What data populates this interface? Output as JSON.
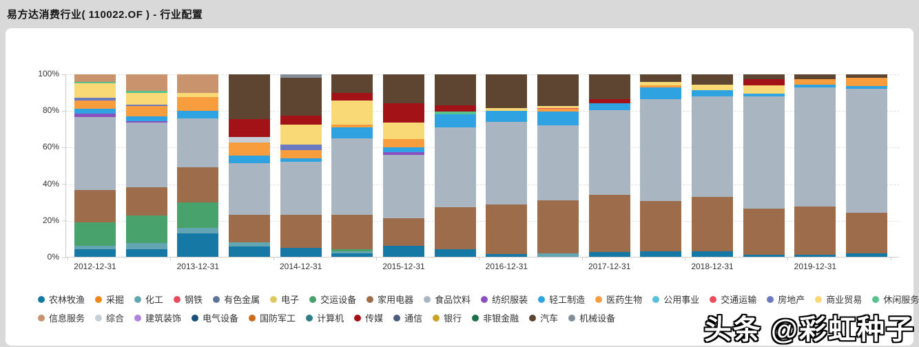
{
  "page": {
    "title": "易方达消费行业( 110022.OF ) - 行业配置"
  },
  "watermark": "头条 @彩虹种子",
  "legend": {
    "row1": [
      {
        "label": "农林牧渔",
        "color": "#1578a5"
      },
      {
        "label": "采掘",
        "color": "#f0861f"
      },
      {
        "label": "化工",
        "color": "#64a5b4"
      },
      {
        "label": "钢铁",
        "color": "#e74b5e"
      },
      {
        "label": "有色金属",
        "color": "#5d7398"
      },
      {
        "label": "电子",
        "color": "#ddc960"
      },
      {
        "label": "交运设备",
        "color": "#47a26c"
      },
      {
        "label": "家用电器",
        "color": "#9d6c4b"
      },
      {
        "label": "食品饮料",
        "color": "#a9b5c1"
      },
      {
        "label": "纺织服装",
        "color": "#8b50bf"
      },
      {
        "label": "轻工制造",
        "color": "#2fa3e1"
      },
      {
        "label": "医药生物",
        "color": "#f89d3e"
      },
      {
        "label": "公用事业",
        "color": "#56c2d9"
      },
      {
        "label": "交通运输",
        "color": "#ea4e5d"
      },
      {
        "label": "房地产",
        "color": "#6b7ac0"
      },
      {
        "label": "商业贸易",
        "color": "#f8d976"
      },
      {
        "label": "休闲服务",
        "color": "#58c28d"
      }
    ],
    "row2": [
      {
        "label": "信息服务",
        "color": "#c9936e"
      },
      {
        "label": "综合",
        "color": "#c6ced8"
      },
      {
        "label": "建筑装饰",
        "color": "#b184dd"
      },
      {
        "label": "电气设备",
        "color": "#17507a"
      },
      {
        "label": "国防军工",
        "color": "#cc6b1c"
      },
      {
        "label": "计算机",
        "color": "#2e7d85"
      },
      {
        "label": "传媒",
        "color": "#a31216"
      },
      {
        "label": "通信",
        "color": "#4a5d7e"
      },
      {
        "label": "银行",
        "color": "#c9a227"
      },
      {
        "label": "非银金融",
        "color": "#1d7045"
      },
      {
        "label": "汽车",
        "color": "#5d4531"
      },
      {
        "label": "机械设备",
        "color": "#848e98"
      }
    ]
  },
  "chart_data": {
    "type": "bar",
    "stacked": true,
    "title": "行业配置",
    "xlabel": "",
    "ylabel": "",
    "unit": "%",
    "ylim": [
      0,
      100
    ],
    "yticks": [
      "0%",
      "20%",
      "40%",
      "60%",
      "80%",
      "100%"
    ],
    "grid": "dashed-horizontal",
    "legend_position": "bottom",
    "x_axis_labels": [
      "2012-12-31",
      "2013-12-31",
      "2014-12-31",
      "2015-12-31",
      "2016-12-31",
      "2017-12-31",
      "2018-12-31",
      "2019-12-31"
    ],
    "bars": [
      {
        "x_label": "2012-12-31",
        "segments": [
          [
            "农林牧渔",
            4
          ],
          [
            "化工",
            2
          ],
          [
            "交运设备",
            13
          ],
          [
            "家用电器",
            17.5
          ],
          [
            "食品饮料",
            40
          ],
          [
            "纺织服装",
            2
          ],
          [
            "轻工制造",
            2.5
          ],
          [
            "医药生物",
            4.5
          ],
          [
            "房地产",
            1.5
          ],
          [
            "商业贸易",
            8
          ],
          [
            "休闲服务",
            1
          ],
          [
            "信息服务",
            4
          ]
        ]
      },
      {
        "x_label": "",
        "segments": [
          [
            "农林牧渔",
            4
          ],
          [
            "化工",
            3.5
          ],
          [
            "交运设备",
            15
          ],
          [
            "家用电器",
            15.5
          ],
          [
            "食品饮料",
            35.5
          ],
          [
            "纺织服装",
            1
          ],
          [
            "轻工制造",
            2.5
          ],
          [
            "医药生物",
            5.5
          ],
          [
            "房地产",
            1
          ],
          [
            "商业贸易",
            6.5
          ],
          [
            "休闲服务",
            1
          ],
          [
            "信息服务",
            9
          ]
        ]
      },
      {
        "x_label": "2013-12-31",
        "segments": [
          [
            "农林牧渔",
            13
          ],
          [
            "化工",
            3
          ],
          [
            "交运设备",
            14
          ],
          [
            "家用电器",
            19
          ],
          [
            "食品饮料",
            27
          ],
          [
            "轻工制造",
            4
          ],
          [
            "医药生物",
            7.5
          ],
          [
            "商业贸易",
            2.5
          ],
          [
            "信息服务",
            10
          ]
        ]
      },
      {
        "x_label": "",
        "segments": [
          [
            "农林牧渔",
            5.5
          ],
          [
            "化工",
            2.5
          ],
          [
            "家用电器",
            15
          ],
          [
            "食品饮料",
            28.5
          ],
          [
            "轻工制造",
            4
          ],
          [
            "医药生物",
            7
          ],
          [
            "综合",
            3
          ],
          [
            "传媒",
            10
          ],
          [
            "汽车",
            24.5
          ]
        ]
      },
      {
        "x_label": "2014-12-31",
        "segments": [
          [
            "农林牧渔",
            5
          ],
          [
            "家用电器",
            18
          ],
          [
            "食品饮料",
            29
          ],
          [
            "轻工制造",
            2
          ],
          [
            "医药生物",
            4.5
          ],
          [
            "房地产",
            3
          ],
          [
            "商业贸易",
            11
          ],
          [
            "传媒",
            5
          ],
          [
            "汽车",
            20.5
          ],
          [
            "机械设备",
            2
          ]
        ]
      },
      {
        "x_label": "",
        "segments": [
          [
            "农林牧渔",
            2
          ],
          [
            "化工",
            1
          ],
          [
            "交运设备",
            1
          ],
          [
            "家用电器",
            19
          ],
          [
            "食品饮料",
            42
          ],
          [
            "轻工制造",
            6
          ],
          [
            "医药生物",
            1.5
          ],
          [
            "商业贸易",
            13
          ],
          [
            "传媒",
            4.5
          ],
          [
            "汽车",
            10
          ]
        ]
      },
      {
        "x_label": "2015-12-31",
        "segments": [
          [
            "农林牧渔",
            6
          ],
          [
            "家用电器",
            15
          ],
          [
            "食品饮料",
            35
          ],
          [
            "纺织服装",
            1.5
          ],
          [
            "轻工制造",
            2.5
          ],
          [
            "医药生物",
            4.5
          ],
          [
            "商业贸易",
            9
          ],
          [
            "传媒",
            10.5
          ],
          [
            "汽车",
            16
          ]
        ]
      },
      {
        "x_label": "",
        "segments": [
          [
            "农林牧渔",
            4
          ],
          [
            "家用电器",
            23
          ],
          [
            "食品饮料",
            44
          ],
          [
            "轻工制造",
            7
          ],
          [
            "休闲服务",
            1.5
          ],
          [
            "传媒",
            3.5
          ],
          [
            "汽车",
            17
          ]
        ]
      },
      {
        "x_label": "2016-12-31",
        "segments": [
          [
            "农林牧渔",
            1.5
          ],
          [
            "家用电器",
            27
          ],
          [
            "食品饮料",
            45.5
          ],
          [
            "轻工制造",
            6
          ],
          [
            "商业贸易",
            1.5
          ],
          [
            "汽车",
            18.5
          ]
        ]
      },
      {
        "x_label": "",
        "segments": [
          [
            "化工",
            2
          ],
          [
            "家用电器",
            29
          ],
          [
            "食品饮料",
            41
          ],
          [
            "轻工制造",
            7.5
          ],
          [
            "医药生物",
            1.5
          ],
          [
            "交通运输",
            0.5
          ],
          [
            "商业贸易",
            1
          ],
          [
            "汽车",
            17.5
          ]
        ]
      },
      {
        "x_label": "2017-12-31",
        "segments": [
          [
            "农林牧渔",
            2.5
          ],
          [
            "家用电器",
            31.5
          ],
          [
            "食品饮料",
            46.5
          ],
          [
            "轻工制造",
            3.5
          ],
          [
            "传媒",
            2.5
          ],
          [
            "汽车",
            13.5
          ]
        ]
      },
      {
        "x_label": "",
        "segments": [
          [
            "农林牧渔",
            3
          ],
          [
            "家用电器",
            27.5
          ],
          [
            "食品饮料",
            56
          ],
          [
            "轻工制造",
            6.5
          ],
          [
            "医药生物",
            1
          ],
          [
            "商业贸易",
            2
          ],
          [
            "汽车",
            4
          ]
        ]
      },
      {
        "x_label": "2018-12-31",
        "segments": [
          [
            "农林牧渔",
            3
          ],
          [
            "家用电器",
            30
          ],
          [
            "食品饮料",
            55
          ],
          [
            "轻工制造",
            3.5
          ],
          [
            "商业贸易",
            3
          ],
          [
            "汽车",
            5.5
          ]
        ]
      },
      {
        "x_label": "",
        "segments": [
          [
            "农林牧渔",
            1
          ],
          [
            "家用电器",
            25.5
          ],
          [
            "食品饮料",
            61.5
          ],
          [
            "轻工制造",
            1.5
          ],
          [
            "商业贸易",
            4.5
          ],
          [
            "传媒",
            3.5
          ],
          [
            "汽车",
            2.5
          ]
        ]
      },
      {
        "x_label": "2019-12-31",
        "segments": [
          [
            "农林牧渔",
            1
          ],
          [
            "家用电器",
            26.5
          ],
          [
            "食品饮料",
            65.5
          ],
          [
            "轻工制造",
            1.5
          ],
          [
            "医药生物",
            3
          ],
          [
            "汽车",
            2.5
          ]
        ]
      },
      {
        "x_label": "",
        "segments": [
          [
            "农林牧渔",
            2
          ],
          [
            "家用电器",
            22
          ],
          [
            "食品饮料",
            68
          ],
          [
            "轻工制造",
            1.5
          ],
          [
            "医药生物",
            4.5
          ],
          [
            "汽车",
            2
          ]
        ]
      }
    ]
  }
}
